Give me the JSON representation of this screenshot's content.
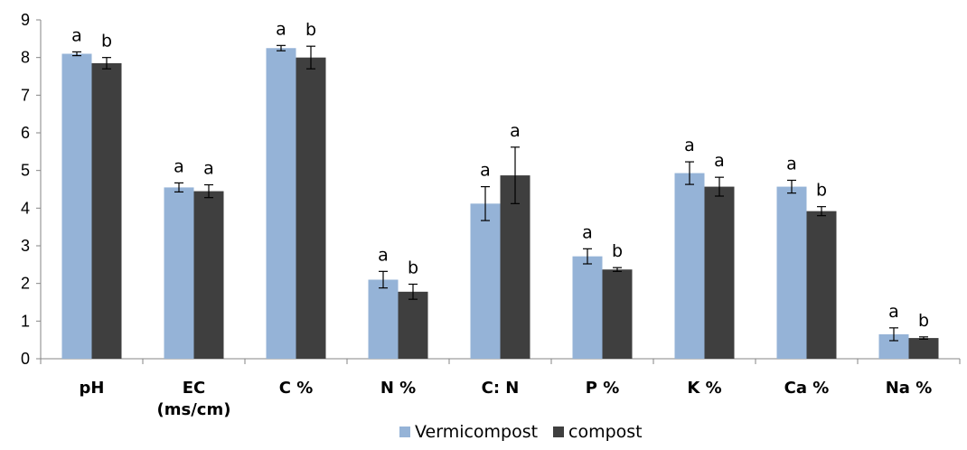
{
  "chart_data": {
    "type": "bar",
    "title": "",
    "xlabel": "",
    "ylabel": "",
    "ylim": [
      0,
      9
    ],
    "yticks": [
      "0",
      "1",
      "2",
      "3",
      "4",
      "5",
      "6",
      "7",
      "8",
      "9"
    ],
    "categories": [
      [
        "pH"
      ],
      [
        "EC",
        "(ms/cm)"
      ],
      [
        "C %"
      ],
      [
        "N %"
      ],
      [
        "C: N"
      ],
      [
        "P %"
      ],
      [
        "K %"
      ],
      [
        "Ca %"
      ],
      [
        "Na %"
      ]
    ],
    "series": [
      {
        "name": "Vermicompost",
        "color": "#95B3D7",
        "values": [
          8.1,
          4.55,
          8.25,
          2.1,
          4.12,
          2.72,
          4.93,
          4.57,
          0.65
        ],
        "errors": [
          0.05,
          0.12,
          0.07,
          0.22,
          0.45,
          0.2,
          0.3,
          0.17,
          0.17
        ],
        "letters": [
          "a",
          "a",
          "a",
          "a",
          "a",
          "a",
          "a",
          "a",
          "a"
        ]
      },
      {
        "name": "compost",
        "color": "#3F3F3F",
        "values": [
          7.85,
          4.45,
          8.0,
          1.78,
          4.87,
          2.37,
          4.57,
          3.92,
          0.55
        ],
        "errors": [
          0.15,
          0.17,
          0.3,
          0.2,
          0.75,
          0.05,
          0.25,
          0.12,
          0.03
        ],
        "letters": [
          "b",
          "a",
          "b",
          "b",
          "a",
          "b",
          "a",
          "b",
          "b"
        ]
      }
    ],
    "legend": {
      "position": "bottom-center"
    },
    "grid": false
  }
}
